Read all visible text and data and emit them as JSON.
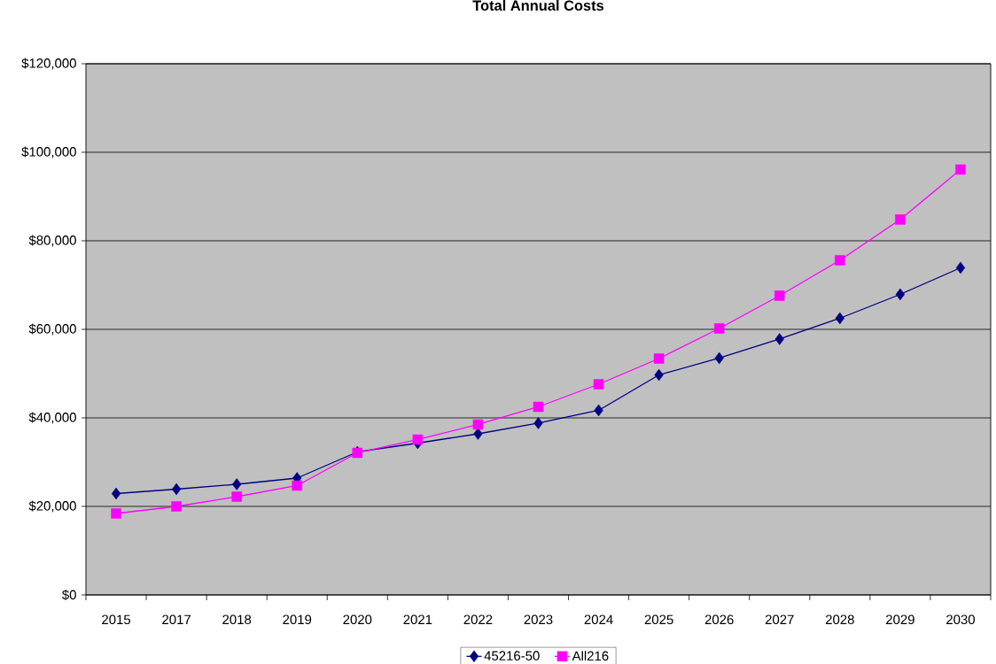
{
  "chart_data": {
    "type": "line",
    "title": "Total Annual Costs",
    "categories": [
      "2015",
      "2017",
      "2018",
      "2019",
      "2020",
      "2021",
      "2022",
      "2023",
      "2024",
      "2025",
      "2026",
      "2027",
      "2028",
      "2029",
      "2030"
    ],
    "series": [
      {
        "name": "45216-50",
        "color": "#000080",
        "marker": "diamond",
        "values": [
          22900,
          23900,
          25000,
          26400,
          32300,
          34300,
          36400,
          38800,
          41700,
          49700,
          53500,
          57800,
          62500,
          67900,
          73900
        ]
      },
      {
        "name": "All216",
        "color": "#ff00ff",
        "marker": "square",
        "values": [
          18400,
          20000,
          22200,
          24700,
          32100,
          35100,
          38500,
          42500,
          47600,
          53400,
          60200,
          67600,
          75600,
          84800,
          96100
        ]
      }
    ],
    "ylim": [
      0,
      120000
    ],
    "yticks": [
      {
        "value": 0,
        "label": "$0"
      },
      {
        "value": 20000,
        "label": "$20,000"
      },
      {
        "value": 40000,
        "label": "$40,000"
      },
      {
        "value": 60000,
        "label": "$60,000"
      },
      {
        "value": 80000,
        "label": "$80,000"
      },
      {
        "value": 100000,
        "label": "$100,000"
      },
      {
        "value": 120000,
        "label": "$120,000"
      }
    ],
    "grid": "y",
    "legend": "bottom",
    "line_style": "solid"
  }
}
